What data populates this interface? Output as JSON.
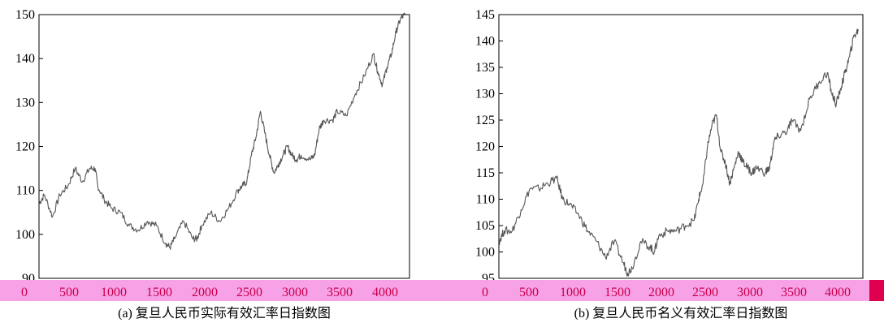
{
  "colors": {
    "band": "#f7a1e6",
    "band_text": "#c8004b",
    "line": "#555555",
    "corner_mark": "#e0004f"
  },
  "chart_data": [
    {
      "type": "line",
      "caption": "(a) 复旦人民币实际有效汇率日指数图",
      "xlim": [
        0,
        4100
      ],
      "ylim": [
        90,
        150
      ],
      "xticks": [
        "0",
        "500",
        "1000",
        "1500",
        "2000",
        "2500",
        "3000",
        "3500",
        "4000"
      ],
      "yticks": [
        "90",
        "100",
        "110",
        "120",
        "130",
        "140",
        "150"
      ],
      "series": [
        {
          "x": [
            0,
            60,
            150,
            230,
            320,
            400,
            480,
            560,
            620,
            650,
            720,
            800,
            900,
            1000,
            1100,
            1200,
            1300,
            1400,
            1450,
            1500,
            1600,
            1700,
            1750,
            1800,
            1900,
            2000,
            2100,
            2200,
            2250,
            2300,
            2350,
            2400,
            2450,
            2500,
            2550,
            2600,
            2650,
            2700,
            2750,
            2800,
            2850,
            2900,
            3000,
            3050,
            3100,
            3150,
            3250,
            3300,
            3400,
            3500,
            3600,
            3700,
            3750,
            3800,
            3850,
            3900,
            3950,
            4000,
            4050
          ],
          "y": [
            107,
            109,
            104,
            109,
            111,
            115,
            112,
            115,
            115,
            111,
            108,
            106,
            105,
            102,
            101,
            103,
            102,
            98,
            97,
            99,
            103,
            99,
            99,
            102,
            105,
            103,
            106,
            110,
            111,
            112,
            118,
            122,
            128,
            123,
            118,
            114,
            116,
            118,
            120,
            118,
            117,
            118,
            117,
            118,
            124,
            126,
            126,
            128,
            127,
            132,
            136,
            141,
            137,
            134,
            138,
            141,
            146,
            149,
            150
          ]
        }
      ]
    },
    {
      "type": "line",
      "caption": "(b) 复旦人民币名义有效汇率日指数图",
      "xlim": [
        0,
        4100
      ],
      "ylim": [
        95,
        145
      ],
      "xticks": [
        "0",
        "500",
        "1000",
        "1500",
        "2000",
        "2500",
        "3000",
        "3500",
        "4000"
      ],
      "yticks": [
        "95",
        "100",
        "105",
        "110",
        "115",
        "120",
        "125",
        "130",
        "135",
        "140",
        "145"
      ],
      "series": [
        {
          "x": [
            0,
            60,
            150,
            250,
            350,
            450,
            550,
            650,
            720,
            800,
            900,
            1000,
            1100,
            1200,
            1300,
            1400,
            1450,
            1500,
            1600,
            1700,
            1750,
            1800,
            1900,
            2000,
            2100,
            2200,
            2250,
            2300,
            2350,
            2400,
            2450,
            2500,
            2550,
            2600,
            2650,
            2700,
            2750,
            2800,
            2850,
            2900,
            3000,
            3050,
            3100,
            3150,
            3250,
            3300,
            3400,
            3500,
            3600,
            3700,
            3750,
            3800,
            3850,
            3900,
            3950,
            4000,
            4050
          ],
          "y": [
            102,
            104,
            104,
            108,
            112,
            112,
            113,
            114,
            110,
            109,
            107,
            104,
            102,
            99,
            102,
            98,
            96,
            97,
            102,
            101,
            100,
            103,
            104,
            104,
            105,
            106,
            110,
            113,
            120,
            124,
            126,
            119,
            117,
            113,
            116,
            119,
            117,
            116,
            115,
            116,
            115,
            116,
            121,
            122,
            123,
            125,
            123,
            129,
            132,
            134,
            130,
            128,
            131,
            134,
            137,
            141,
            142
          ]
        }
      ]
    }
  ]
}
